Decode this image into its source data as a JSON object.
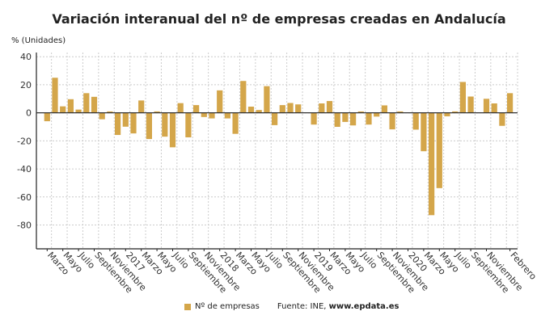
{
  "chart_data": {
    "type": "bar",
    "title": "Variación interanual del nº de empresas creadas en Andalucía",
    "ylabel": "% (Unidades)",
    "xlabel": "",
    "ylim": [
      -97,
      43
    ],
    "yticks": [
      40,
      20,
      0,
      -20,
      -40,
      -60,
      -80
    ],
    "grid": true,
    "legend_position": "bottom",
    "color": "#d4a64a",
    "x_tick_labels": [
      {
        "index": 0,
        "label": "Marzo"
      },
      {
        "index": 2,
        "label": "Mayo"
      },
      {
        "index": 4,
        "label": "Julio"
      },
      {
        "index": 6,
        "label": "Septiembre"
      },
      {
        "index": 8,
        "label": "Noviembre"
      },
      {
        "index": 10,
        "label": "2017"
      },
      {
        "index": 12,
        "label": "Marzo"
      },
      {
        "index": 14,
        "label": "Mayo"
      },
      {
        "index": 16,
        "label": "Julio"
      },
      {
        "index": 18,
        "label": "Septiembre"
      },
      {
        "index": 20,
        "label": "Noviembre"
      },
      {
        "index": 22,
        "label": "2018"
      },
      {
        "index": 24,
        "label": "Marzo"
      },
      {
        "index": 26,
        "label": "Mayo"
      },
      {
        "index": 28,
        "label": "Julio"
      },
      {
        "index": 30,
        "label": "Septiembre"
      },
      {
        "index": 32,
        "label": "Noviembre"
      },
      {
        "index": 34,
        "label": "2019"
      },
      {
        "index": 36,
        "label": "Marzo"
      },
      {
        "index": 38,
        "label": "Mayo"
      },
      {
        "index": 40,
        "label": "Julio"
      },
      {
        "index": 42,
        "label": "Septiembre"
      },
      {
        "index": 44,
        "label": "Noviembre"
      },
      {
        "index": 46,
        "label": "2020"
      },
      {
        "index": 48,
        "label": "Marzo"
      },
      {
        "index": 50,
        "label": "Mayo"
      },
      {
        "index": 52,
        "label": "Julio"
      },
      {
        "index": 54,
        "label": "Septiembre"
      },
      {
        "index": 56,
        "label": "Noviembre"
      },
      {
        "index": 59,
        "label": "Febrero"
      }
    ],
    "series": [
      {
        "name": "Nº de empresas",
        "values": [
          -6,
          25,
          4.6,
          9.7,
          2.3,
          14,
          11.4,
          -4.6,
          1,
          -15.8,
          -9.9,
          -14.7,
          8.8,
          -18.7,
          1,
          -17,
          -24.6,
          6.9,
          -17.5,
          5.5,
          -3,
          -4,
          16,
          -4,
          -15,
          22.7,
          4.4,
          2,
          19,
          -8.8,
          5.5,
          7,
          6,
          0.3,
          -8.4,
          6.7,
          8.4,
          -10,
          -6.5,
          -9,
          1,
          -8.4,
          -2.7,
          5.3,
          -11.8,
          1,
          0,
          -12,
          -27.4,
          -73,
          -53.7,
          -2.5,
          1,
          22,
          11.6,
          0,
          10,
          6.7,
          -9.3,
          14
        ]
      }
    ]
  },
  "legend": {
    "series_label": "Nº de empresas"
  },
  "source": {
    "prefix": "Fuente: INE, ",
    "site": "www.epdata.es"
  }
}
